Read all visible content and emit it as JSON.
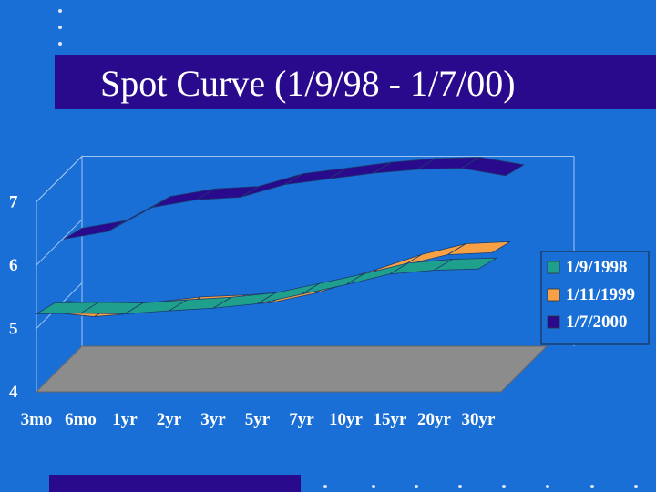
{
  "slide": {
    "title": "Spot Curve (1/9/98 - 1/7/00)"
  },
  "colors": {
    "background": "#1a6fd6",
    "title_bar": "#2a0a8c",
    "floor": "#8c8c8c",
    "series": [
      "#1fa08c",
      "#f7a044",
      "#2a0a8c"
    ]
  },
  "chart_data": {
    "type": "line",
    "style": "3d ribbon",
    "title": "",
    "xlabel": "",
    "ylabel": "",
    "categories": [
      "3mo",
      "6mo",
      "1yr",
      "2yr",
      "3yr",
      "5yr",
      "7yr",
      "10yr",
      "15yr",
      "20yr",
      "30yr"
    ],
    "ylim": [
      4,
      7
    ],
    "yticks": [
      4,
      5,
      6,
      7
    ],
    "grid": false,
    "legend": "right",
    "series": [
      {
        "name": "1/9/1998",
        "values": [
          5.23,
          5.24,
          5.23,
          5.28,
          5.32,
          5.39,
          5.54,
          5.69,
          5.86,
          5.92,
          5.94
        ]
      },
      {
        "name": "1/11/1999",
        "values": [
          5.04,
          4.97,
          5.03,
          5.11,
          5.14,
          5.19,
          5.34,
          5.55,
          5.78,
          5.95,
          5.98
        ]
      },
      {
        "name": "1/7/2000",
        "values": [
          5.98,
          6.1,
          6.48,
          6.6,
          6.64,
          6.84,
          6.93,
          7.02,
          7.08,
          7.1,
          6.98
        ]
      }
    ]
  }
}
